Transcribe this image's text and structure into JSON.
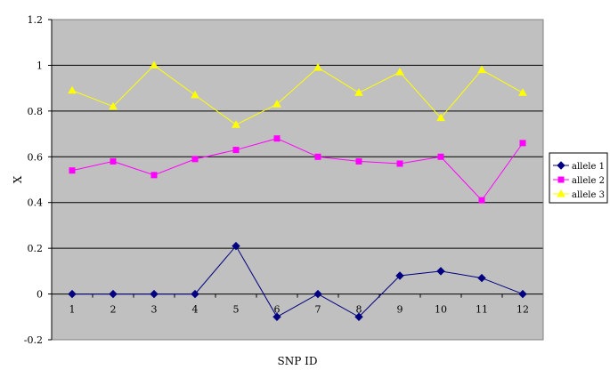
{
  "chart_data": {
    "type": "line",
    "title": "",
    "xlabel": "SNP ID",
    "ylabel": "X",
    "categories": [
      "1",
      "2",
      "3",
      "4",
      "5",
      "6",
      "7",
      "8",
      "9",
      "10",
      "11",
      "12"
    ],
    "y_ticks": [
      "1.2",
      "1",
      "0.8",
      "0.6",
      "0.4",
      "0.2",
      "0",
      "-0.2"
    ],
    "ylim": [
      -0.2,
      1.2
    ],
    "grid": "horizontal",
    "plot_background": "#c0c0c0",
    "legend_position": "right",
    "series": [
      {
        "name": "allele 1",
        "color": "#000080",
        "marker": "diamond",
        "values": [
          0,
          0,
          0,
          0,
          0.21,
          -0.1,
          0,
          -0.1,
          0.08,
          0.1,
          0.07,
          0
        ]
      },
      {
        "name": "allele 2",
        "color": "#ff00ff",
        "marker": "square",
        "values": [
          0.54,
          0.58,
          0.52,
          0.59,
          0.63,
          0.68,
          0.6,
          0.58,
          0.57,
          0.6,
          0.41,
          0.66
        ]
      },
      {
        "name": "allele 3",
        "color": "#ffff00",
        "marker": "triangle",
        "values": [
          0.89,
          0.82,
          1.0,
          0.87,
          0.74,
          0.83,
          0.99,
          0.88,
          0.97,
          0.77,
          0.98,
          0.88
        ]
      }
    ]
  }
}
